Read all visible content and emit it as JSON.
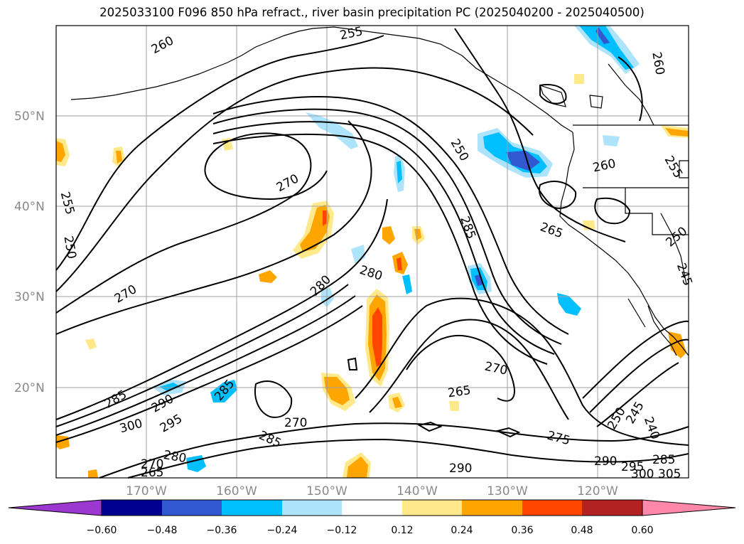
{
  "title": "2025033100 F096 850 hPa refract., river basin precipitation PC (2025040200 - 2025040500)",
  "latitude_labels": [
    "50°N",
    "40°N",
    "30°N",
    "20°N"
  ],
  "longitude_labels": [
    "170°W",
    "160°W",
    "150°W",
    "140°W",
    "130°W",
    "120°W"
  ],
  "contour_labels": [
    "260",
    "255",
    "270",
    "255",
    "250",
    "270",
    "280",
    "280",
    "250",
    "285",
    "260",
    "260",
    "265",
    "255",
    "250",
    "245",
    "270",
    "265",
    "285",
    "290",
    "295",
    "300",
    "285",
    "280",
    "270",
    "265",
    "285",
    "270",
    "290",
    "275",
    "250",
    "245",
    "240",
    "290",
    "295",
    "300",
    "305",
    "285"
  ],
  "colorbar": {
    "ticks": [
      "−0.60",
      "−0.48",
      "−0.36",
      "−0.24",
      "−0.12",
      "0.12",
      "0.24",
      "0.36",
      "0.48",
      "0.60"
    ],
    "colors": [
      "#9c38d0",
      "#000090",
      "#3158d0",
      "#00bfff",
      "#aee4fb",
      "#ffffff",
      "#ffe98a",
      "#ffa500",
      "#ff4500",
      "#b22222",
      "#ff88aa"
    ]
  }
}
